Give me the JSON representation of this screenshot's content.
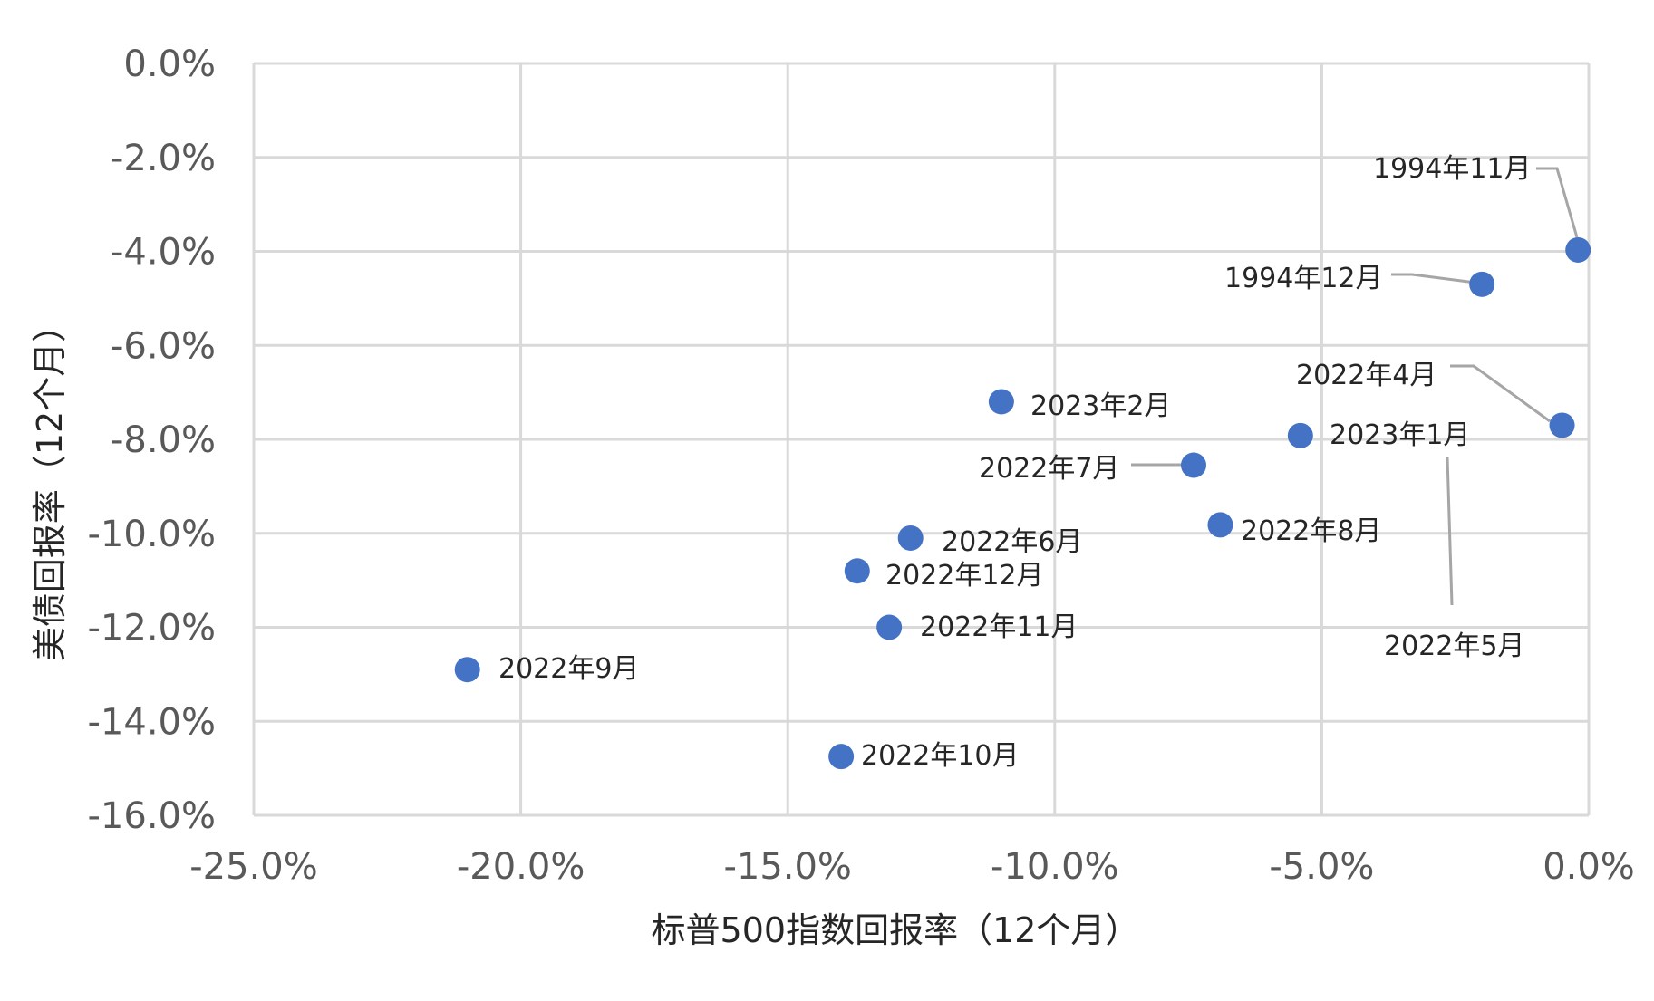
{
  "chart_data": {
    "type": "scatter",
    "xlabel": "标普500指数回报率（12个月）",
    "ylabel": "美债回报率（12个月）",
    "xlim": [
      -25,
      0
    ],
    "ylim": [
      -16,
      0
    ],
    "x_ticks": [
      -25,
      -20,
      -15,
      -10,
      -5,
      0
    ],
    "y_ticks": [
      0,
      -2,
      -4,
      -6,
      -8,
      -10,
      -12,
      -14,
      -16
    ],
    "x_tick_labels": [
      "-25.0%",
      "-20.0%",
      "-15.0%",
      "-10.0%",
      "-5.0%",
      "0.0%"
    ],
    "y_tick_labels": [
      "0.0%",
      "-2.0%",
      "-4.0%",
      "-6.0%",
      "-8.0%",
      "-10.0%",
      "-12.0%",
      "-14.0%",
      "-16.0%"
    ],
    "grid": true,
    "legend": "none",
    "marker_color": "#4472c4",
    "points": [
      {
        "label": "1994年11月",
        "x": -0.2,
        "y": -3.97
      },
      {
        "label": "1994年12月",
        "x": -2.0,
        "y": -4.7
      },
      {
        "label": "2022年4月",
        "x": -0.5,
        "y": -7.7
      },
      {
        "label": "2023年2月",
        "x": -11.0,
        "y": -7.2
      },
      {
        "label": "2023年1月",
        "x": -5.4,
        "y": -7.92
      },
      {
        "label": "2022年7月",
        "x": -7.4,
        "y": -8.55
      },
      {
        "label": "2022年8月",
        "x": -6.9,
        "y": -9.82
      },
      {
        "label": "2022年6月",
        "x": -12.7,
        "y": -10.1
      },
      {
        "label": "2022年12月",
        "x": -13.7,
        "y": -10.8
      },
      {
        "label": "2022年11月",
        "x": -13.1,
        "y": -12.0
      },
      {
        "label": "2022年9月",
        "x": -21.0,
        "y": -12.9
      },
      {
        "label": "2022年10月",
        "x": -14.0,
        "y": -14.75
      },
      {
        "label": "2022年5月",
        "x": -5.4,
        "y": -7.92
      }
    ]
  }
}
